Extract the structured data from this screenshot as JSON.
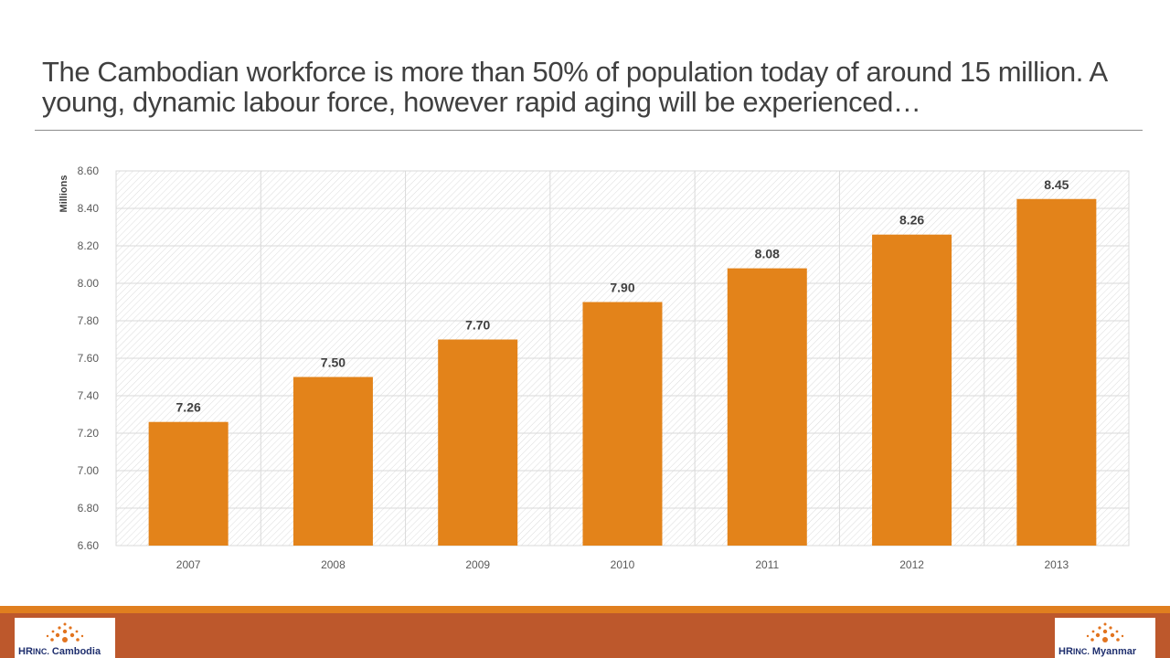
{
  "slide": {
    "title": "The Cambodian workforce is more than 50% of population today of around 15 million.  A young, dynamic labour force, however rapid aging will be experienced…"
  },
  "chart_data": {
    "type": "bar",
    "categories": [
      "2007",
      "2008",
      "2009",
      "2010",
      "2011",
      "2012",
      "2013"
    ],
    "values": [
      7.26,
      7.5,
      7.7,
      7.9,
      8.08,
      8.26,
      8.45
    ],
    "data_labels": [
      "7.26",
      "7.50",
      "7.70",
      "7.90",
      "8.08",
      "8.26",
      "8.45"
    ],
    "title": "",
    "xlabel": "",
    "ylabel": "Millions",
    "ylim": [
      6.6,
      8.6
    ],
    "yticks": [
      "6.60",
      "6.80",
      "7.00",
      "7.20",
      "7.40",
      "7.60",
      "7.80",
      "8.00",
      "8.20",
      "8.40",
      "8.60"
    ],
    "grid": true,
    "legend": "none",
    "bar_color": "#e3831a"
  },
  "footer": {
    "band_color": "#bd582c",
    "accent_color": "#e07f1f",
    "logo_left": {
      "brand": "HR",
      "brand_small": "INC.",
      "region": "Cambodia"
    },
    "logo_right": {
      "brand": "HR",
      "brand_small": "INC.",
      "region": "Myanmar"
    }
  }
}
